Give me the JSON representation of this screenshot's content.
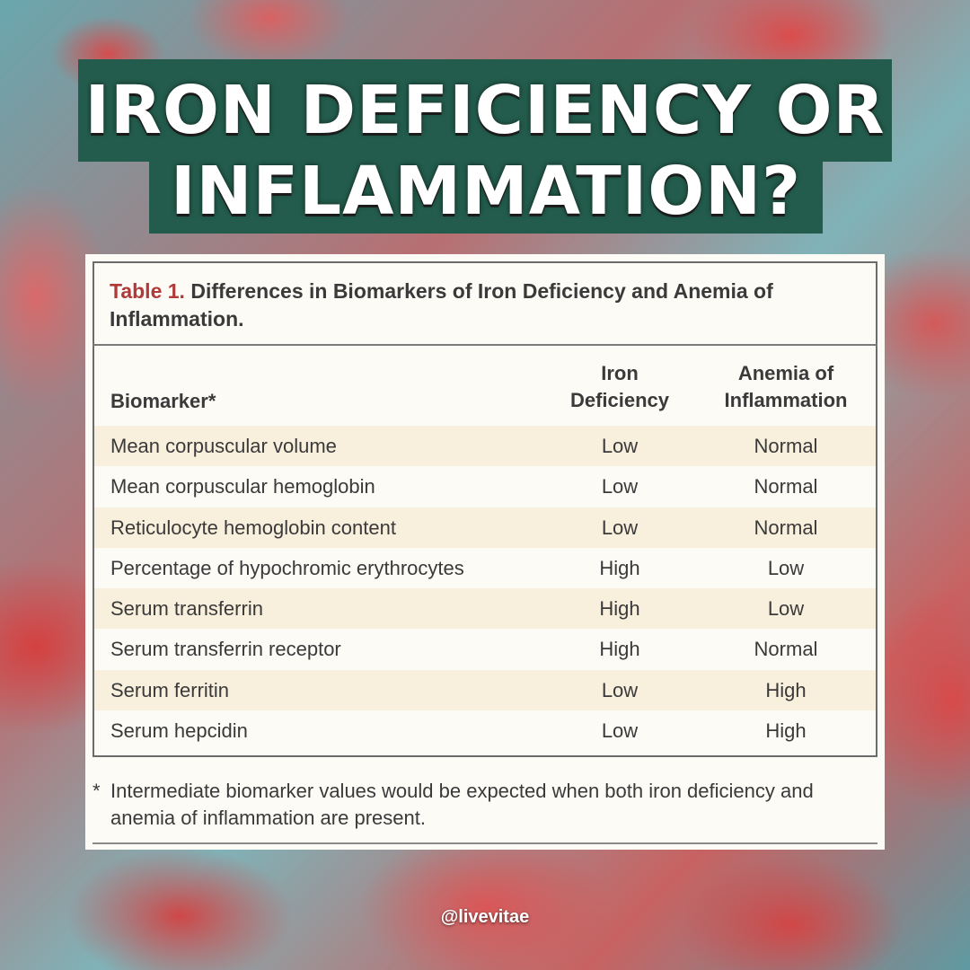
{
  "title": {
    "line1": "IRON DEFICIENCY OR",
    "line2": "INFLAMMATION?"
  },
  "table": {
    "caption_label": "Table 1.",
    "caption_text": "Differences in Biomarkers of Iron Deficiency and Anemia of Inflammation.",
    "headers": {
      "biomarker": "Biomarker*",
      "iron_line1": "Iron",
      "iron_line2": "Deficiency",
      "anemia_line1": "Anemia of",
      "anemia_line2": "Inflammation"
    },
    "rows": [
      {
        "biomarker": "Mean corpuscular volume",
        "iron": "Low",
        "anemia": "Normal"
      },
      {
        "biomarker": "Mean corpuscular hemoglobin",
        "iron": "Low",
        "anemia": "Normal"
      },
      {
        "biomarker": "Reticulocyte hemoglobin content",
        "iron": "Low",
        "anemia": "Normal"
      },
      {
        "biomarker": "Percentage of hypochromic erythrocytes",
        "iron": "High",
        "anemia": "Low"
      },
      {
        "biomarker": "Serum transferrin",
        "iron": "High",
        "anemia": "Low"
      },
      {
        "biomarker": "Serum transferrin receptor",
        "iron": "High",
        "anemia": "Normal"
      },
      {
        "biomarker": "Serum ferritin",
        "iron": "Low",
        "anemia": "High"
      },
      {
        "biomarker": "Serum hepcidin",
        "iron": "Low",
        "anemia": "High"
      }
    ],
    "footnote_marker": "*",
    "footnote": "Intermediate biomarker values would be expected when both iron deficiency and anemia of inflammation are present."
  },
  "handle": "@livevitae",
  "colors": {
    "title_band": "#235c4c",
    "caption_label": "#b03a3a",
    "row_shade": "#f8efdd",
    "card_bg": "#fdfbf6"
  }
}
